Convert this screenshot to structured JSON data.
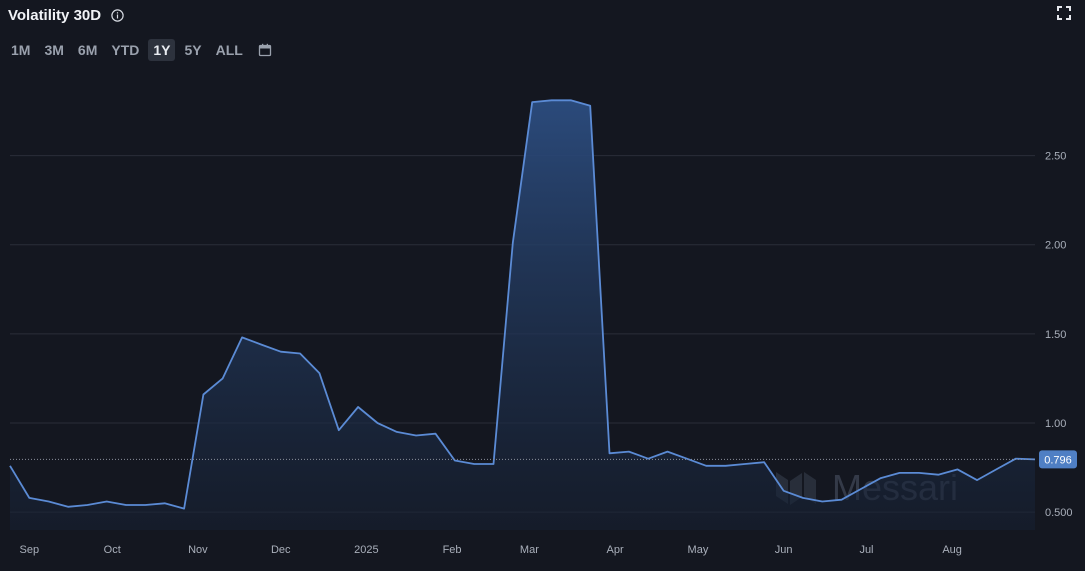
{
  "header": {
    "title": "Volatility 30D"
  },
  "ranges": {
    "items": [
      "1M",
      "3M",
      "6M",
      "YTD",
      "1Y",
      "5Y",
      "ALL"
    ],
    "active": "1Y"
  },
  "watermark": "Messari",
  "last_value_label": "0.796",
  "colors": {
    "background": "#141720",
    "line": "#5b8bd5",
    "fill_top": "#2c4d80",
    "fill_bottom": "#162032",
    "grid": "#2a2e38",
    "text": "#a9afba"
  },
  "chart_data": {
    "type": "area",
    "title": "Volatility 30D",
    "xlabel": "",
    "ylabel": "",
    "ylim": [
      0.4,
      2.98
    ],
    "yticks": [
      0.5,
      1.0,
      1.5,
      2.0,
      2.5
    ],
    "ytick_labels": [
      "0.500",
      "1.00",
      "1.50",
      "2.00",
      "2.50"
    ],
    "xlim": [
      "2024-08-25",
      "2025-08-31"
    ],
    "xticks": [
      "2024-09-01",
      "2024-10-01",
      "2024-11-01",
      "2024-12-01",
      "2025-01-01",
      "2025-02-01",
      "2025-03-01",
      "2025-04-01",
      "2025-05-01",
      "2025-06-01",
      "2025-07-01",
      "2025-08-01"
    ],
    "xtick_labels": [
      "Sep",
      "Oct",
      "Nov",
      "Dec",
      "2025",
      "Feb",
      "Mar",
      "Apr",
      "May",
      "Jun",
      "Jul",
      "Aug"
    ],
    "grid": true,
    "series": [
      {
        "x": [
          "2024-08-25",
          "2024-09-01",
          "2024-09-08",
          "2024-09-15",
          "2024-09-22",
          "2024-09-29",
          "2024-10-06",
          "2024-10-13",
          "2024-10-20",
          "2024-10-27",
          "2024-11-03",
          "2024-11-10",
          "2024-11-17",
          "2024-11-24",
          "2024-12-01",
          "2024-12-08",
          "2024-12-15",
          "2024-12-22",
          "2024-12-29",
          "2025-01-05",
          "2025-01-12",
          "2025-01-19",
          "2025-01-26",
          "2025-02-02",
          "2025-02-09",
          "2025-02-16",
          "2025-02-23",
          "2025-03-02",
          "2025-03-09",
          "2025-03-16",
          "2025-03-23",
          "2025-03-30",
          "2025-04-06",
          "2025-04-13",
          "2025-04-20",
          "2025-04-27",
          "2025-05-04",
          "2025-05-11",
          "2025-05-18",
          "2025-05-25",
          "2025-06-01",
          "2025-06-08",
          "2025-06-15",
          "2025-06-22",
          "2025-06-29",
          "2025-07-06",
          "2025-07-13",
          "2025-07-20",
          "2025-07-27",
          "2025-08-03",
          "2025-08-10",
          "2025-08-17",
          "2025-08-24",
          "2025-08-31"
        ],
        "values": [
          0.76,
          0.58,
          0.56,
          0.53,
          0.54,
          0.56,
          0.54,
          0.54,
          0.55,
          0.52,
          1.16,
          1.25,
          1.48,
          1.44,
          1.4,
          1.39,
          1.28,
          0.96,
          1.09,
          1.0,
          0.95,
          0.93,
          0.94,
          0.79,
          0.77,
          0.77,
          2.01,
          2.8,
          2.81,
          2.81,
          2.78,
          0.83,
          0.84,
          0.8,
          0.84,
          0.8,
          0.76,
          0.76,
          0.77,
          0.78,
          0.62,
          0.58,
          0.56,
          0.57,
          0.63,
          0.69,
          0.72,
          0.72,
          0.71,
          0.74,
          0.68,
          0.74,
          0.8,
          0.796
        ]
      }
    ]
  }
}
